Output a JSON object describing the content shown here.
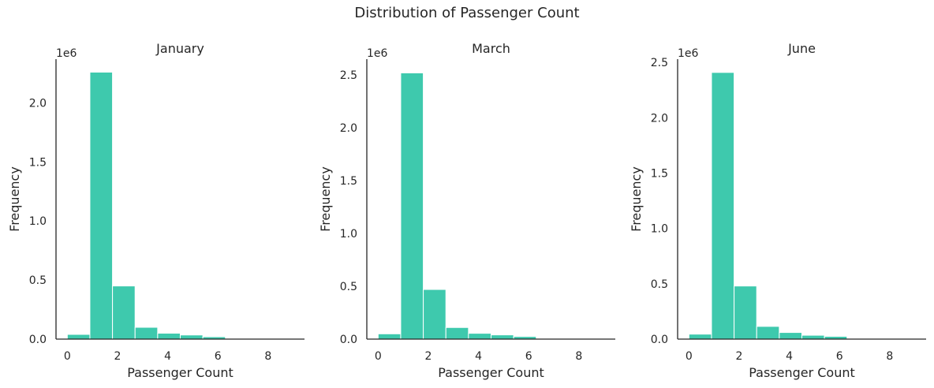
{
  "figure": {
    "title": "Distribution of Passenger Count"
  },
  "chart_data": [
    {
      "type": "bar",
      "title": "January",
      "xlabel": "Passenger Count",
      "ylabel": "Frequency",
      "y_scale_label": "1e6",
      "color": "#3ec9ad",
      "bin_edges": [
        0,
        0.9,
        1.8,
        2.7,
        3.6,
        4.5,
        5.4,
        6.3,
        7.2,
        8.1,
        9.0
      ],
      "values": [
        0.04,
        2.26,
        0.45,
        0.1,
        0.05,
        0.035,
        0.02,
        0.0,
        0.0,
        0.001
      ],
      "xlim": [
        -0.45,
        9.45
      ],
      "ylim": [
        0,
        2.37
      ],
      "xticks": [
        0,
        2,
        4,
        6,
        8
      ],
      "yticks": [
        0.0,
        0.5,
        1.0,
        1.5,
        2.0
      ],
      "ytick_labels": [
        "0.0",
        "0.5",
        "1.0",
        "1.5",
        "2.0"
      ]
    },
    {
      "type": "bar",
      "title": "March",
      "xlabel": "Passenger Count",
      "ylabel": "Frequency",
      "y_scale_label": "1e6",
      "color": "#3ec9ad",
      "bin_edges": [
        0,
        0.9,
        1.8,
        2.7,
        3.6,
        4.5,
        5.4,
        6.3,
        7.2,
        8.1,
        9.0
      ],
      "values": [
        0.05,
        2.52,
        0.47,
        0.11,
        0.055,
        0.04,
        0.025,
        0.0,
        0.0,
        0.001
      ],
      "xlim": [
        -0.45,
        9.45
      ],
      "ylim": [
        0,
        2.65
      ],
      "xticks": [
        0,
        2,
        4,
        6,
        8
      ],
      "yticks": [
        0.0,
        0.5,
        1.0,
        1.5,
        2.0,
        2.5
      ],
      "ytick_labels": [
        "0.0",
        "0.5",
        "1.0",
        "1.5",
        "2.0",
        "2.5"
      ]
    },
    {
      "type": "bar",
      "title": "June",
      "xlabel": "Passenger Count",
      "ylabel": "Frequency",
      "y_scale_label": "1e6",
      "color": "#3ec9ad",
      "bin_edges": [
        0,
        0.9,
        1.8,
        2.7,
        3.6,
        4.5,
        5.4,
        6.3,
        7.2,
        8.1,
        9.0
      ],
      "values": [
        0.045,
        2.41,
        0.48,
        0.115,
        0.06,
        0.035,
        0.025,
        0.0,
        0.0,
        0.001
      ],
      "xlim": [
        -0.45,
        9.45
      ],
      "ylim": [
        0,
        2.53
      ],
      "xticks": [
        0,
        2,
        4,
        6,
        8
      ],
      "yticks": [
        0.0,
        0.5,
        1.0,
        1.5,
        2.0,
        2.5
      ],
      "ytick_labels": [
        "0.0",
        "0.5",
        "1.0",
        "1.5",
        "2.0",
        "2.5"
      ]
    }
  ]
}
